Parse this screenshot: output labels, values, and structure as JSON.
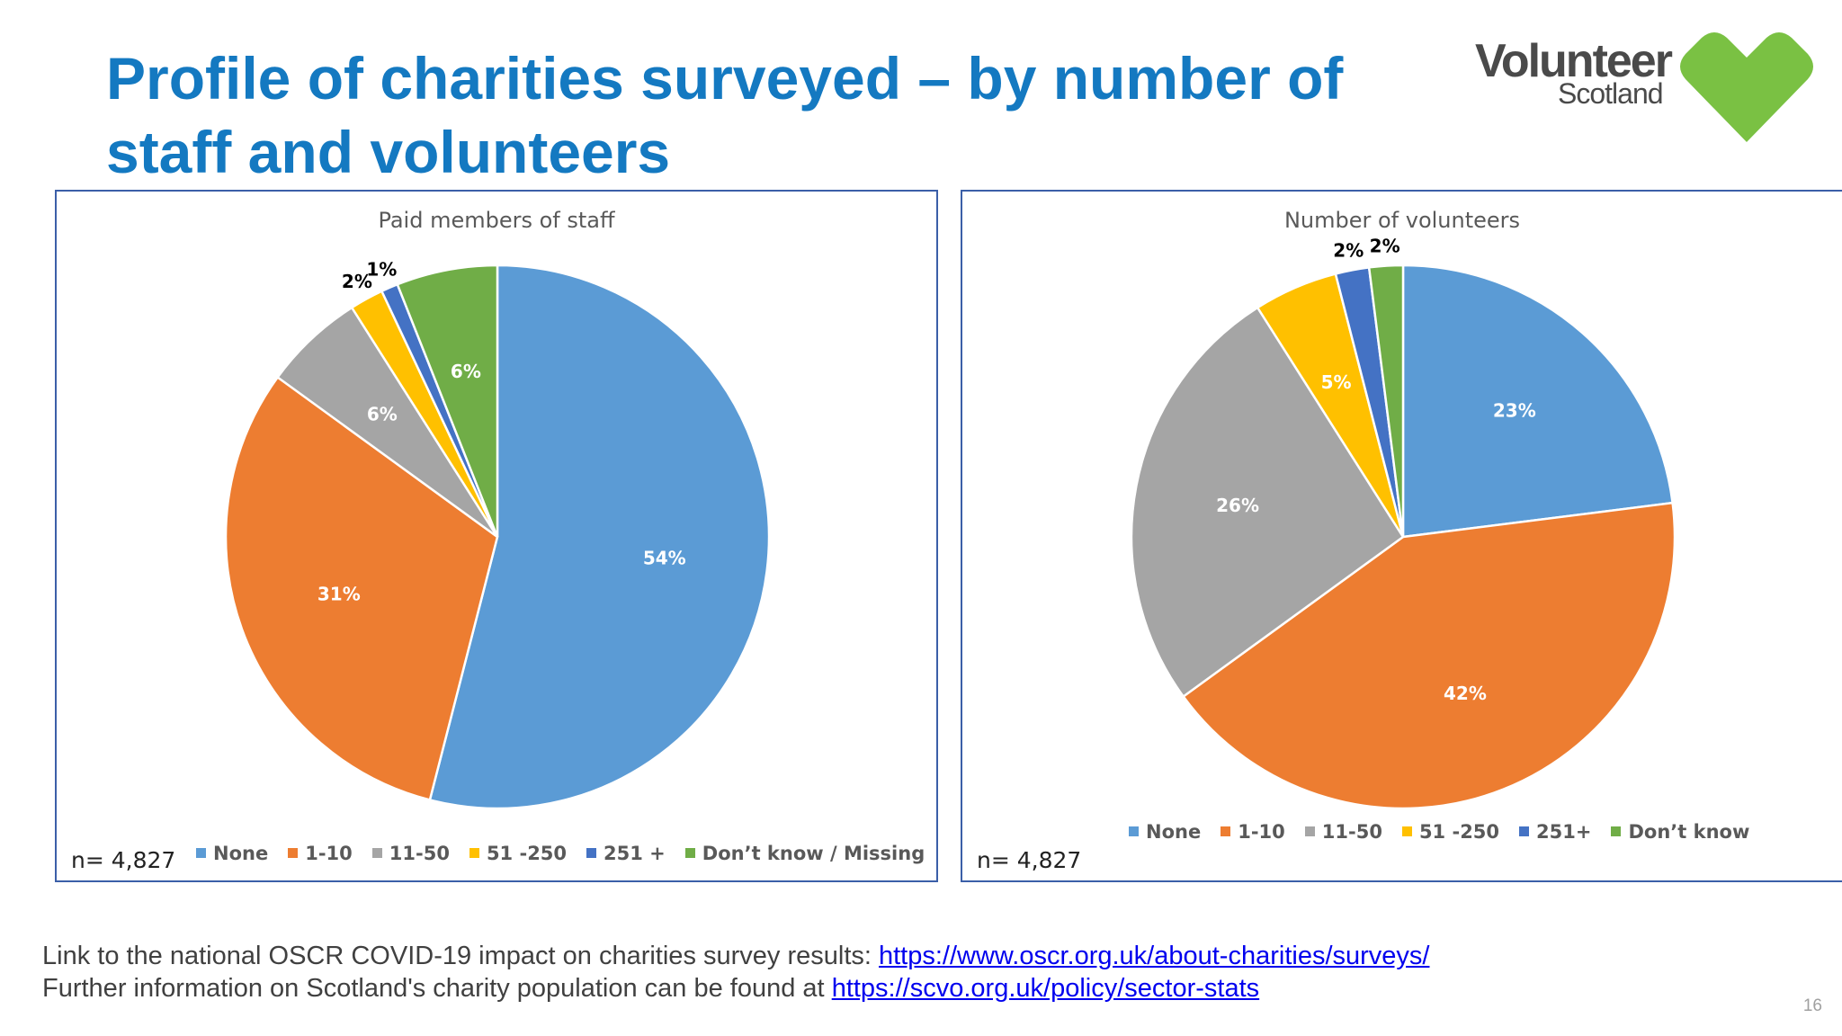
{
  "title_line1": "Profile of charities surveyed – by number of",
  "title_line2": "staff and volunteers",
  "logo": {
    "word1": "Volunteer",
    "word2": "Scotland",
    "icon": "heart-icon",
    "color": "#7ac143"
  },
  "footer": {
    "line1_text": "Link to the national OSCR COVID-19 impact on charities survey results:  ",
    "line1_link": "https://www.oscr.org.uk/about-charities/surveys/",
    "line2_text": "Further information on Scotland's charity population can be found at ",
    "line2_link": "https://scvo.org.uk/policy/sector-stats"
  },
  "page_number": "16",
  "chart_data": [
    {
      "type": "pie",
      "title": "Paid members of staff",
      "n_label": "n= 4,827",
      "categories": [
        "None",
        "1-10",
        "11-50",
        "51 -250",
        "251 +",
        "Don’t know / Missing"
      ],
      "values": [
        54,
        31,
        6,
        2,
        1,
        6
      ],
      "labels": [
        "54%",
        "31%",
        "6%",
        "2%",
        "1%",
        "6%"
      ],
      "colors": [
        "#5b9bd5",
        "#ed7d31",
        "#a5a5a5",
        "#ffc000",
        "#4472c4",
        "#70ad47"
      ],
      "legend_position": "bottom"
    },
    {
      "type": "pie",
      "title": "Number of volunteers",
      "n_label": "n= 4,827",
      "categories": [
        "None",
        "1-10",
        "11-50",
        "51 -250",
        "251+",
        "Don’t know"
      ],
      "values": [
        23,
        42,
        26,
        5,
        2,
        2
      ],
      "labels": [
        "23%",
        "42%",
        "26%",
        "5%",
        "2%",
        "2%"
      ],
      "colors": [
        "#5b9bd5",
        "#ed7d31",
        "#a5a5a5",
        "#ffc000",
        "#4472c4",
        "#70ad47"
      ],
      "legend_position": "bottom"
    }
  ]
}
